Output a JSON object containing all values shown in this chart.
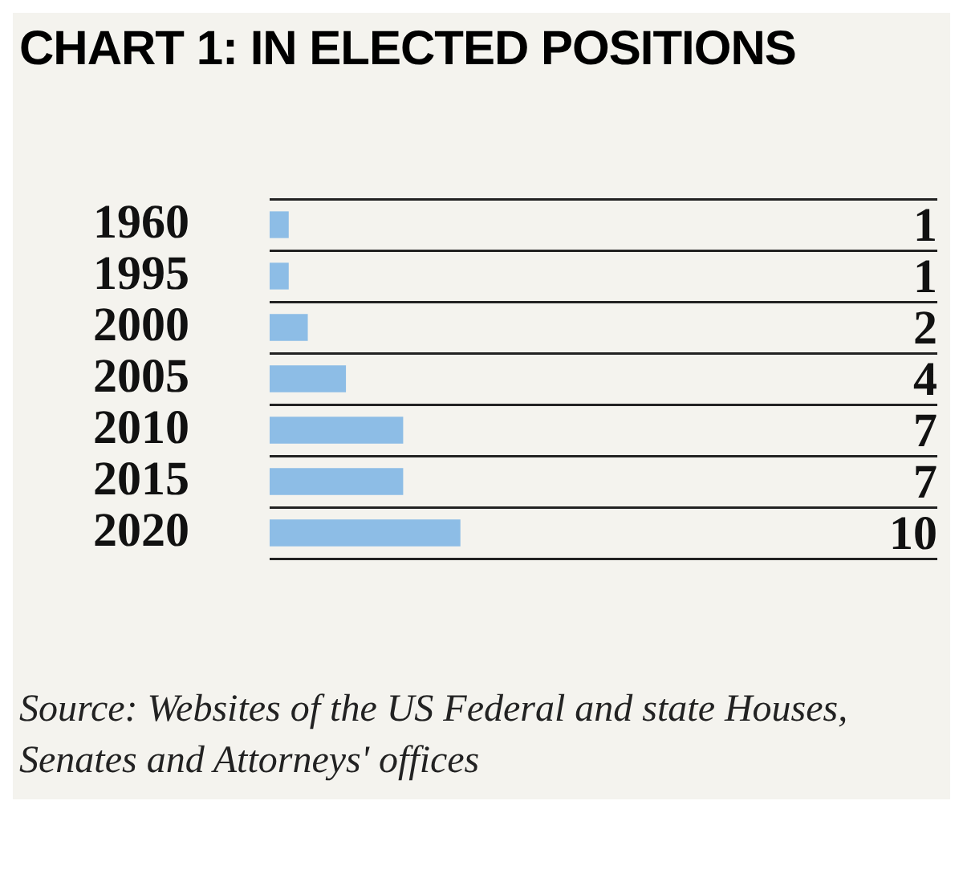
{
  "chart_data": {
    "type": "bar",
    "orientation": "horizontal",
    "title": "CHART 1: IN ELECTED POSITIONS",
    "categories": [
      "1960",
      "1995",
      "2000",
      "2005",
      "2010",
      "2015",
      "2020"
    ],
    "values": [
      1,
      1,
      2,
      4,
      7,
      7,
      10
    ],
    "color": "#8dbde6",
    "data_labels": true,
    "xlim": [
      0,
      35
    ],
    "tick_labels": "y",
    "grid": "y",
    "legend": false,
    "annotations": [
      "Source: Websites of the US Federal and state Houses, Senates and Attorneys' offices"
    ]
  }
}
